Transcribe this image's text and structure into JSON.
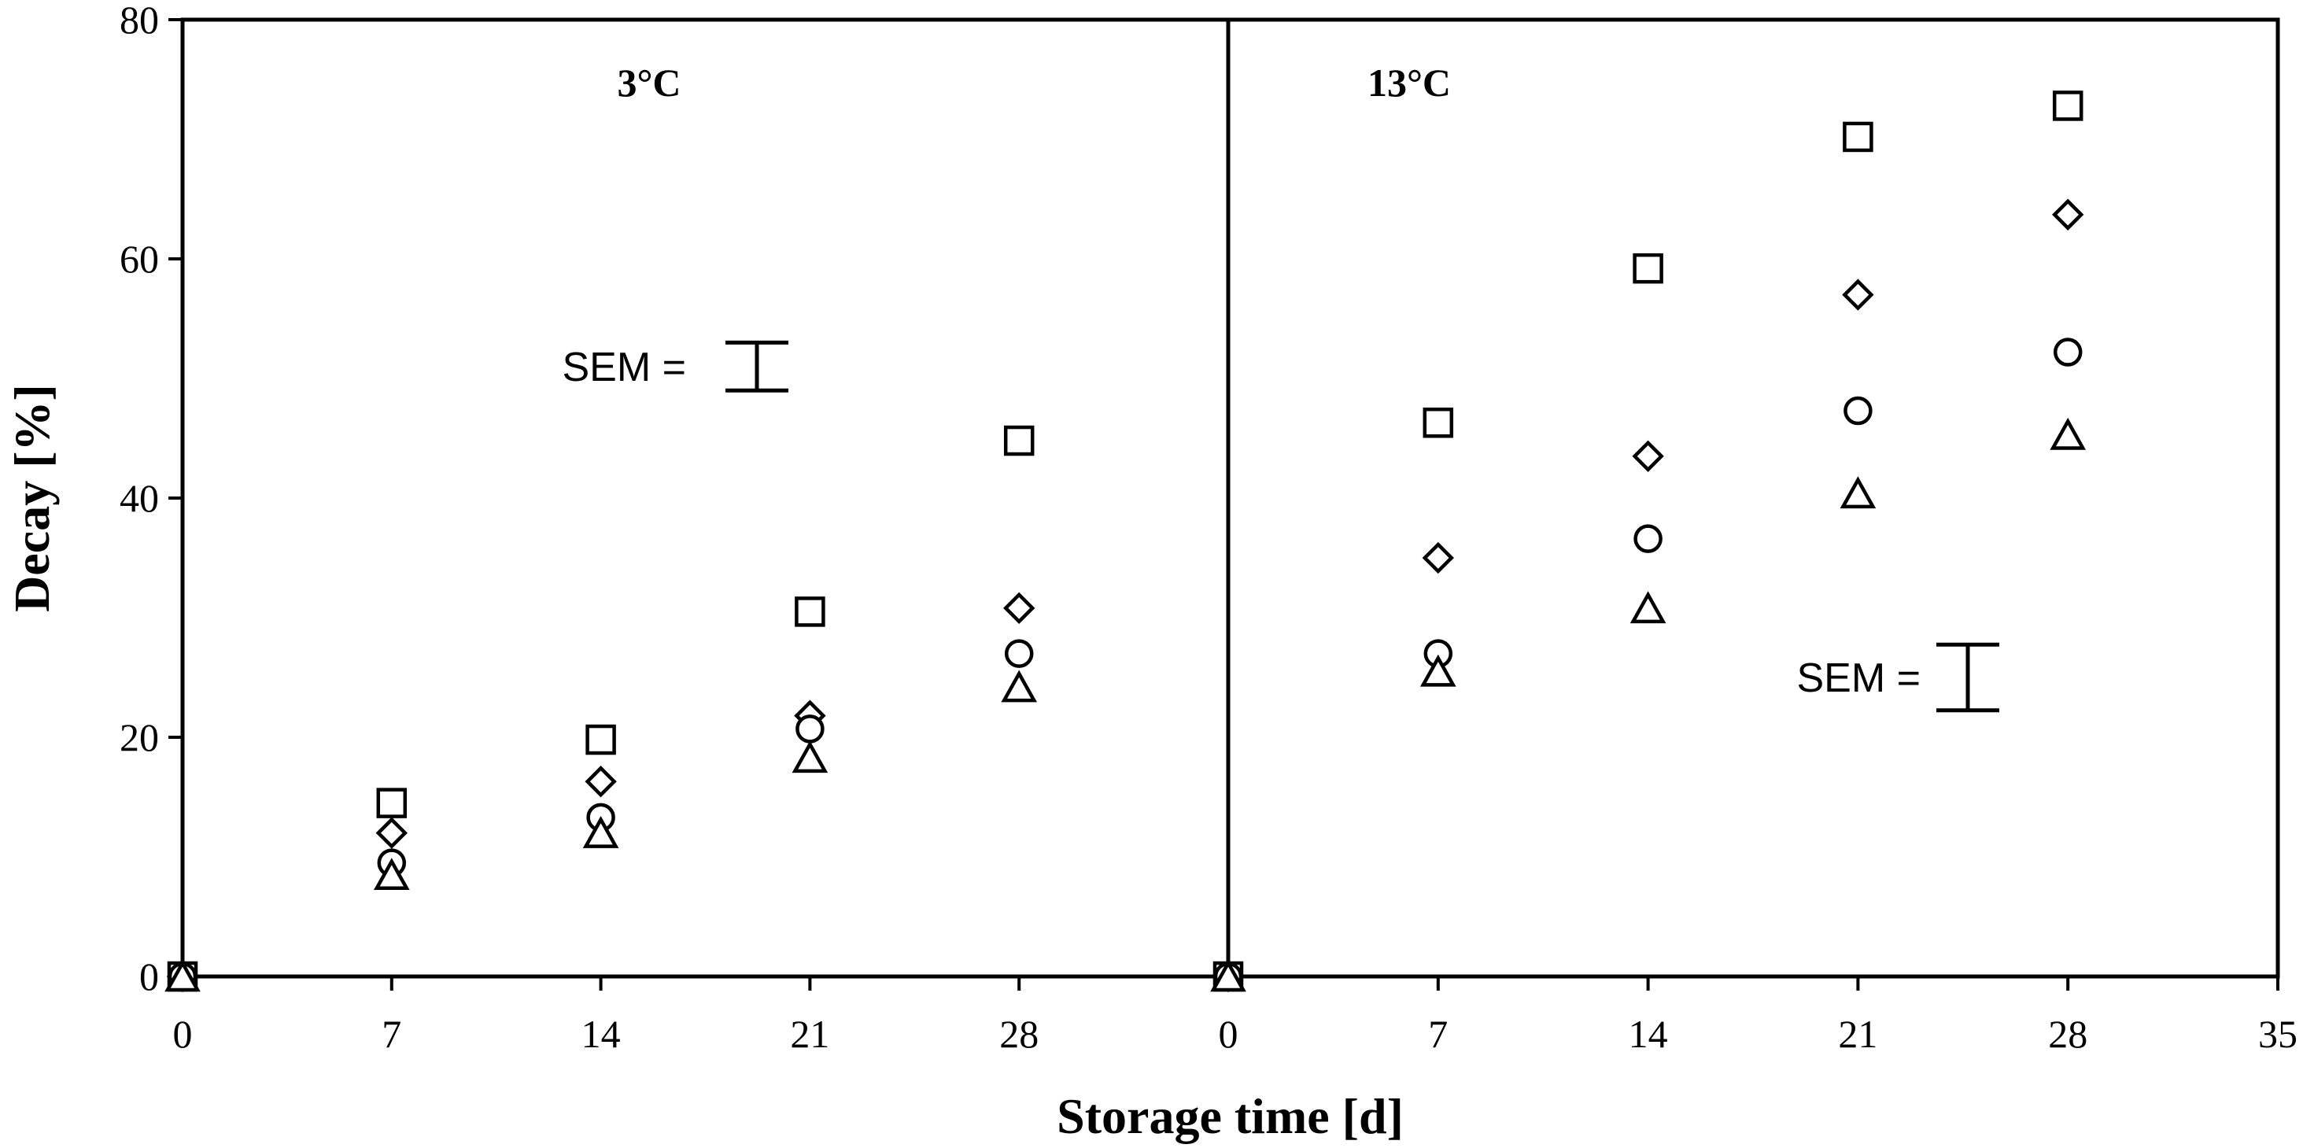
{
  "chart_data": {
    "type": "scatter",
    "xlabel": "Storage time [d]",
    "ylabel": "Decay [%]",
    "ylim": [
      0,
      80
    ],
    "y_ticks": [
      "0",
      "20",
      "40",
      "60",
      "80"
    ],
    "grid": false,
    "panels": [
      {
        "title": "3°C",
        "x_ticks": [
          "0",
          "7",
          "14",
          "21",
          "28"
        ],
        "sem_label": "SEM =",
        "sem_value": 4,
        "sem_center": 51,
        "series": [
          {
            "marker": "square",
            "x": [
              0,
              7,
              14,
              21,
              28
            ],
            "y": [
              0,
              14.5,
              19.8,
              30.5,
              44.8
            ]
          },
          {
            "marker": "diamond",
            "x": [
              0,
              7,
              14,
              21,
              28
            ],
            "y": [
              0,
              12.0,
              16.3,
              21.8,
              30.8
            ]
          },
          {
            "marker": "circle",
            "x": [
              0,
              7,
              14,
              21,
              28
            ],
            "y": [
              0,
              9.5,
              13.3,
              20.7,
              27.0
            ]
          },
          {
            "marker": "triangle",
            "x": [
              0,
              7,
              14,
              21,
              28
            ],
            "y": [
              0,
              8.5,
              12.0,
              18.3,
              24.2
            ]
          }
        ]
      },
      {
        "title": "13°C",
        "x_ticks": [
          "0",
          "7",
          "14",
          "21",
          "28",
          "35"
        ],
        "sem_label": "SEM =",
        "sem_value": 5.5,
        "sem_center": 25,
        "series": [
          {
            "marker": "square",
            "x": [
              0,
              7,
              14,
              21,
              28
            ],
            "y": [
              0,
              46.3,
              59.2,
              70.2,
              72.8
            ]
          },
          {
            "marker": "diamond",
            "x": [
              0,
              7,
              14,
              21,
              28
            ],
            "y": [
              0,
              35.0,
              43.5,
              57.0,
              63.7
            ]
          },
          {
            "marker": "circle",
            "x": [
              0,
              7,
              14,
              21,
              28
            ],
            "y": [
              0,
              27.0,
              36.6,
              47.3,
              52.2
            ]
          },
          {
            "marker": "triangle",
            "x": [
              0,
              7,
              14,
              21,
              28
            ],
            "y": [
              0,
              25.5,
              30.8,
              40.4,
              45.3
            ]
          }
        ]
      }
    ]
  }
}
